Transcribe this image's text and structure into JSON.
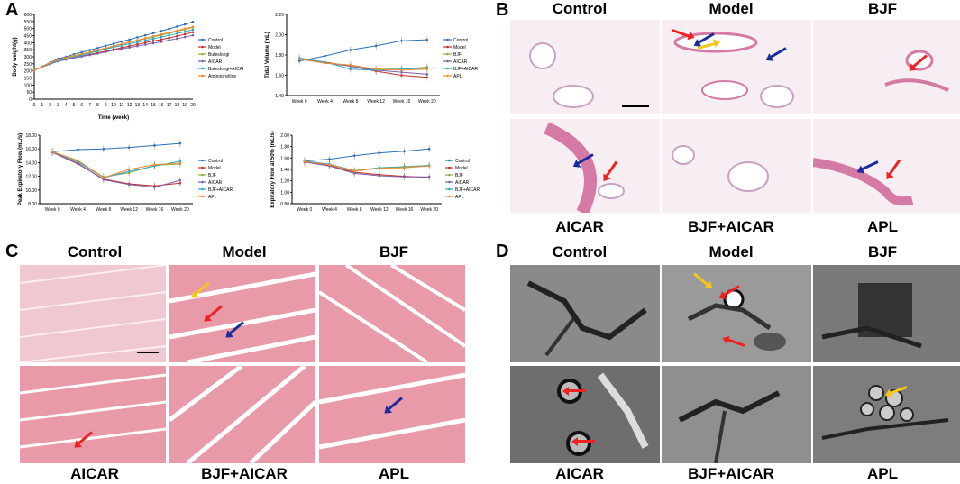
{
  "panels": {
    "a": "A",
    "b": "B",
    "c": "C",
    "d": "D"
  },
  "groups_top": [
    "Control",
    "Model",
    "BJF"
  ],
  "groups_bottom": [
    "AICAR",
    "BJF+AICAR",
    "APL"
  ],
  "colors": {
    "control": "#2e6fb5",
    "model": "#c0302b",
    "bjf": "#8db040",
    "aicar": "#7f5fa8",
    "bjf_aicar": "#2ea7c7",
    "apl": "#f28d2e"
  },
  "chart_data": [
    {
      "type": "line",
      "ylabel": "Body weight(g)",
      "xlabel": "Time (week)",
      "x": [
        0,
        1,
        2,
        3,
        4,
        5,
        6,
        7,
        8,
        9,
        10,
        11,
        12,
        13,
        14,
        15,
        16,
        17,
        18,
        19,
        20
      ],
      "ylim": [
        0,
        600
      ],
      "yticks": [
        "0",
        "50",
        "100",
        "150",
        "200",
        "250",
        "300",
        "350",
        "400",
        "450",
        "500",
        "550",
        "600"
      ],
      "xticks": [
        "0",
        "1",
        "2",
        "3",
        "4",
        "5",
        "6",
        "7",
        "8",
        "9",
        "10",
        "11",
        "12",
        "13",
        "14",
        "15",
        "16",
        "17",
        "18",
        "19",
        "20"
      ],
      "legend": "right",
      "series": [
        {
          "name": "Control",
          "color": "#2e6fb5",
          "values": [
            205,
            232,
            260,
            285,
            300,
            318,
            332,
            348,
            362,
            378,
            392,
            408,
            422,
            438,
            452,
            468,
            482,
            498,
            514,
            530,
            548
          ]
        },
        {
          "name": "Model",
          "color": "#c0302b",
          "values": [
            205,
            228,
            250,
            270,
            282,
            295,
            305,
            316,
            328,
            340,
            352,
            364,
            376,
            388,
            400,
            412,
            422,
            434,
            446,
            460,
            474
          ]
        },
        {
          "name": "Bufeslongi",
          "color": "#8db040",
          "values": [
            205,
            230,
            256,
            278,
            292,
            306,
            318,
            332,
            346,
            360,
            374,
            388,
            402,
            414,
            428,
            440,
            454,
            466,
            480,
            494,
            508
          ]
        },
        {
          "name": "AICAR",
          "color": "#7f5fa8",
          "values": [
            205,
            226,
            248,
            268,
            280,
            292,
            302,
            312,
            322,
            334,
            346,
            356,
            366,
            376,
            386,
            396,
            406,
            418,
            428,
            440,
            452
          ]
        },
        {
          "name": "Bufeslongi+AICAR",
          "color": "#2ea7c7",
          "values": [
            205,
            229,
            252,
            272,
            286,
            300,
            312,
            326,
            340,
            354,
            368,
            380,
            392,
            404,
            416,
            428,
            440,
            452,
            464,
            478,
            492
          ]
        },
        {
          "name": "Aminophylline",
          "color": "#f28d2e",
          "values": [
            205,
            231,
            257,
            279,
            294,
            308,
            320,
            334,
            348,
            362,
            376,
            390,
            404,
            418,
            432,
            446,
            460,
            472,
            486,
            500,
            512
          ]
        }
      ]
    },
    {
      "type": "line",
      "ylabel": "Tidal Volume (mL)",
      "xlabel": "",
      "categories": [
        "Week 0",
        "Week 4",
        "Week 8",
        "Week 12",
        "Week 16",
        "Week 20"
      ],
      "ylim": [
        1.4,
        2.2
      ],
      "yticks": [
        "1.40",
        "1.60",
        "1.80",
        "2.00",
        "2.20"
      ],
      "legend": "right",
      "series": [
        {
          "name": "Control",
          "color": "#2e6fb5",
          "values": [
            1.74,
            1.79,
            1.85,
            1.89,
            1.94,
            1.95
          ]
        },
        {
          "name": "Model",
          "color": "#c0302b",
          "values": [
            1.76,
            1.73,
            1.69,
            1.64,
            1.6,
            1.58
          ]
        },
        {
          "name": "BJF",
          "color": "#8db040",
          "values": [
            1.76,
            1.72,
            1.7,
            1.66,
            1.66,
            1.68
          ]
        },
        {
          "name": "AICAR",
          "color": "#7f5fa8",
          "values": [
            1.76,
            1.72,
            1.69,
            1.65,
            1.63,
            1.61
          ]
        },
        {
          "name": "BJF+AICAR",
          "color": "#2ea7c7",
          "values": [
            1.77,
            1.73,
            1.66,
            1.65,
            1.66,
            1.67
          ]
        },
        {
          "name": "APL",
          "color": "#f28d2e",
          "values": [
            1.76,
            1.72,
            1.7,
            1.66,
            1.65,
            1.66
          ]
        }
      ]
    },
    {
      "type": "line",
      "ylabel": "Peak Expiratory Flow (mL/s)",
      "xlabel": "",
      "categories": [
        "Week 0",
        "Week 4",
        "Week 8",
        "Week 12",
        "Week 16",
        "Week 20"
      ],
      "ylim": [
        8,
        18
      ],
      "yticks": [
        "8.00",
        "10.00",
        "12.00",
        "14.00",
        "16.00",
        "18.00"
      ],
      "legend": "right",
      "series": [
        {
          "name": "Control",
          "color": "#2e6fb5",
          "values": [
            15.6,
            15.9,
            16.0,
            16.2,
            16.5,
            16.8
          ]
        },
        {
          "name": "Model",
          "color": "#c0302b",
          "values": [
            15.5,
            13.8,
            11.6,
            10.9,
            10.6,
            11.0
          ]
        },
        {
          "name": "BJF",
          "color": "#8db040",
          "values": [
            15.5,
            14.2,
            11.9,
            12.5,
            13.6,
            13.8
          ]
        },
        {
          "name": "AICAR",
          "color": "#7f5fa8",
          "values": [
            15.5,
            13.9,
            11.5,
            10.8,
            10.4,
            11.4
          ]
        },
        {
          "name": "BJF+AICAR",
          "color": "#2ea7c7",
          "values": [
            15.6,
            14.1,
            11.8,
            12.7,
            13.5,
            14.2
          ]
        },
        {
          "name": "APL",
          "color": "#f28d2e",
          "values": [
            15.6,
            14.3,
            11.8,
            13.0,
            13.7,
            13.9
          ]
        }
      ]
    },
    {
      "type": "line",
      "ylabel": "Expiratory Flow at 50% (mL/s)",
      "xlabel": "",
      "categories": [
        "Week 0",
        "Week 4",
        "Week 8",
        "Week 12",
        "Week 16",
        "Week 20"
      ],
      "ylim": [
        0.8,
        2.0
      ],
      "yticks": [
        "0.80",
        "1.00",
        "1.20",
        "1.40",
        "1.60",
        "1.80",
        "2.00"
      ],
      "legend": "right",
      "series": [
        {
          "name": "Control",
          "color": "#2e6fb5",
          "values": [
            1.55,
            1.58,
            1.64,
            1.69,
            1.72,
            1.76
          ]
        },
        {
          "name": "Model",
          "color": "#c0302b",
          "values": [
            1.53,
            1.47,
            1.35,
            1.31,
            1.28,
            1.26
          ]
        },
        {
          "name": "BJF",
          "color": "#8db040",
          "values": [
            1.54,
            1.49,
            1.38,
            1.43,
            1.45,
            1.47
          ]
        },
        {
          "name": "AICAR",
          "color": "#7f5fa8",
          "values": [
            1.53,
            1.46,
            1.33,
            1.29,
            1.27,
            1.27
          ]
        },
        {
          "name": "BJF+AICAR",
          "color": "#2ea7c7",
          "values": [
            1.55,
            1.49,
            1.37,
            1.43,
            1.44,
            1.47
          ]
        },
        {
          "name": "APL",
          "color": "#f28d2e",
          "values": [
            1.54,
            1.48,
            1.37,
            1.42,
            1.43,
            1.46
          ]
        }
      ]
    }
  ]
}
